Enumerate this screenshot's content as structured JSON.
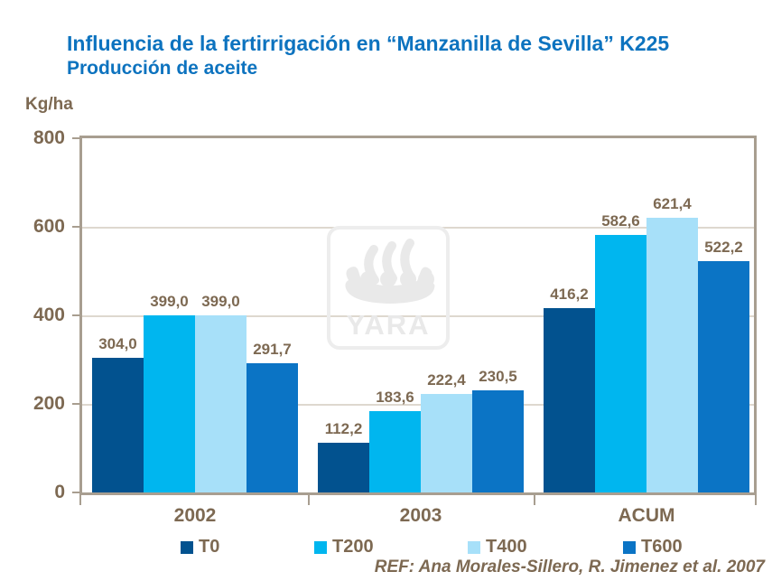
{
  "header": {
    "title": "Influencia de la fertirrigación en “Manzanilla de Sevilla” K225",
    "subtitle": "Producción de aceite"
  },
  "chart_data": {
    "type": "bar",
    "title": "Influencia de la fertirrigación en “Manzanilla de Sevilla” K225 — Producción de aceite",
    "ylabel": "Kg/ha",
    "xlabel": "",
    "ylim": [
      0,
      800
    ],
    "yticks": [
      0,
      200,
      400,
      600,
      800
    ],
    "gridlines": [
      200,
      400,
      600
    ],
    "grid": true,
    "legend_position": "bottom",
    "decimal_separator": ",",
    "categories": [
      "2002",
      "2003",
      "ACUM"
    ],
    "series": [
      {
        "name": "T0",
        "color": "#02528f",
        "values": [
          304.0,
          112.2,
          416.2
        ]
      },
      {
        "name": "T200",
        "color": "#00b6ef",
        "values": [
          399.0,
          183.6,
          582.6
        ]
      },
      {
        "name": "T400",
        "color": "#a7e0f9",
        "values": [
          399.0,
          222.4,
          621.4
        ]
      },
      {
        "name": "T600",
        "color": "#0b74c5",
        "values": [
          291.7,
          230.5,
          522.2
        ]
      }
    ]
  },
  "watermark": {
    "text": "YARA",
    "icon": "viking-ship-icon"
  },
  "footer": {
    "reference": "REF: Ana Morales-Sillero, R. Jimenez et al. 2007"
  },
  "colors": {
    "title_blue": "#0d73bf",
    "text_brown": "#7d6952",
    "axis": "#a89e90",
    "gridline": "#ded8cf",
    "watermark_gray": "#e9e9e9",
    "background": "#ffffff"
  }
}
